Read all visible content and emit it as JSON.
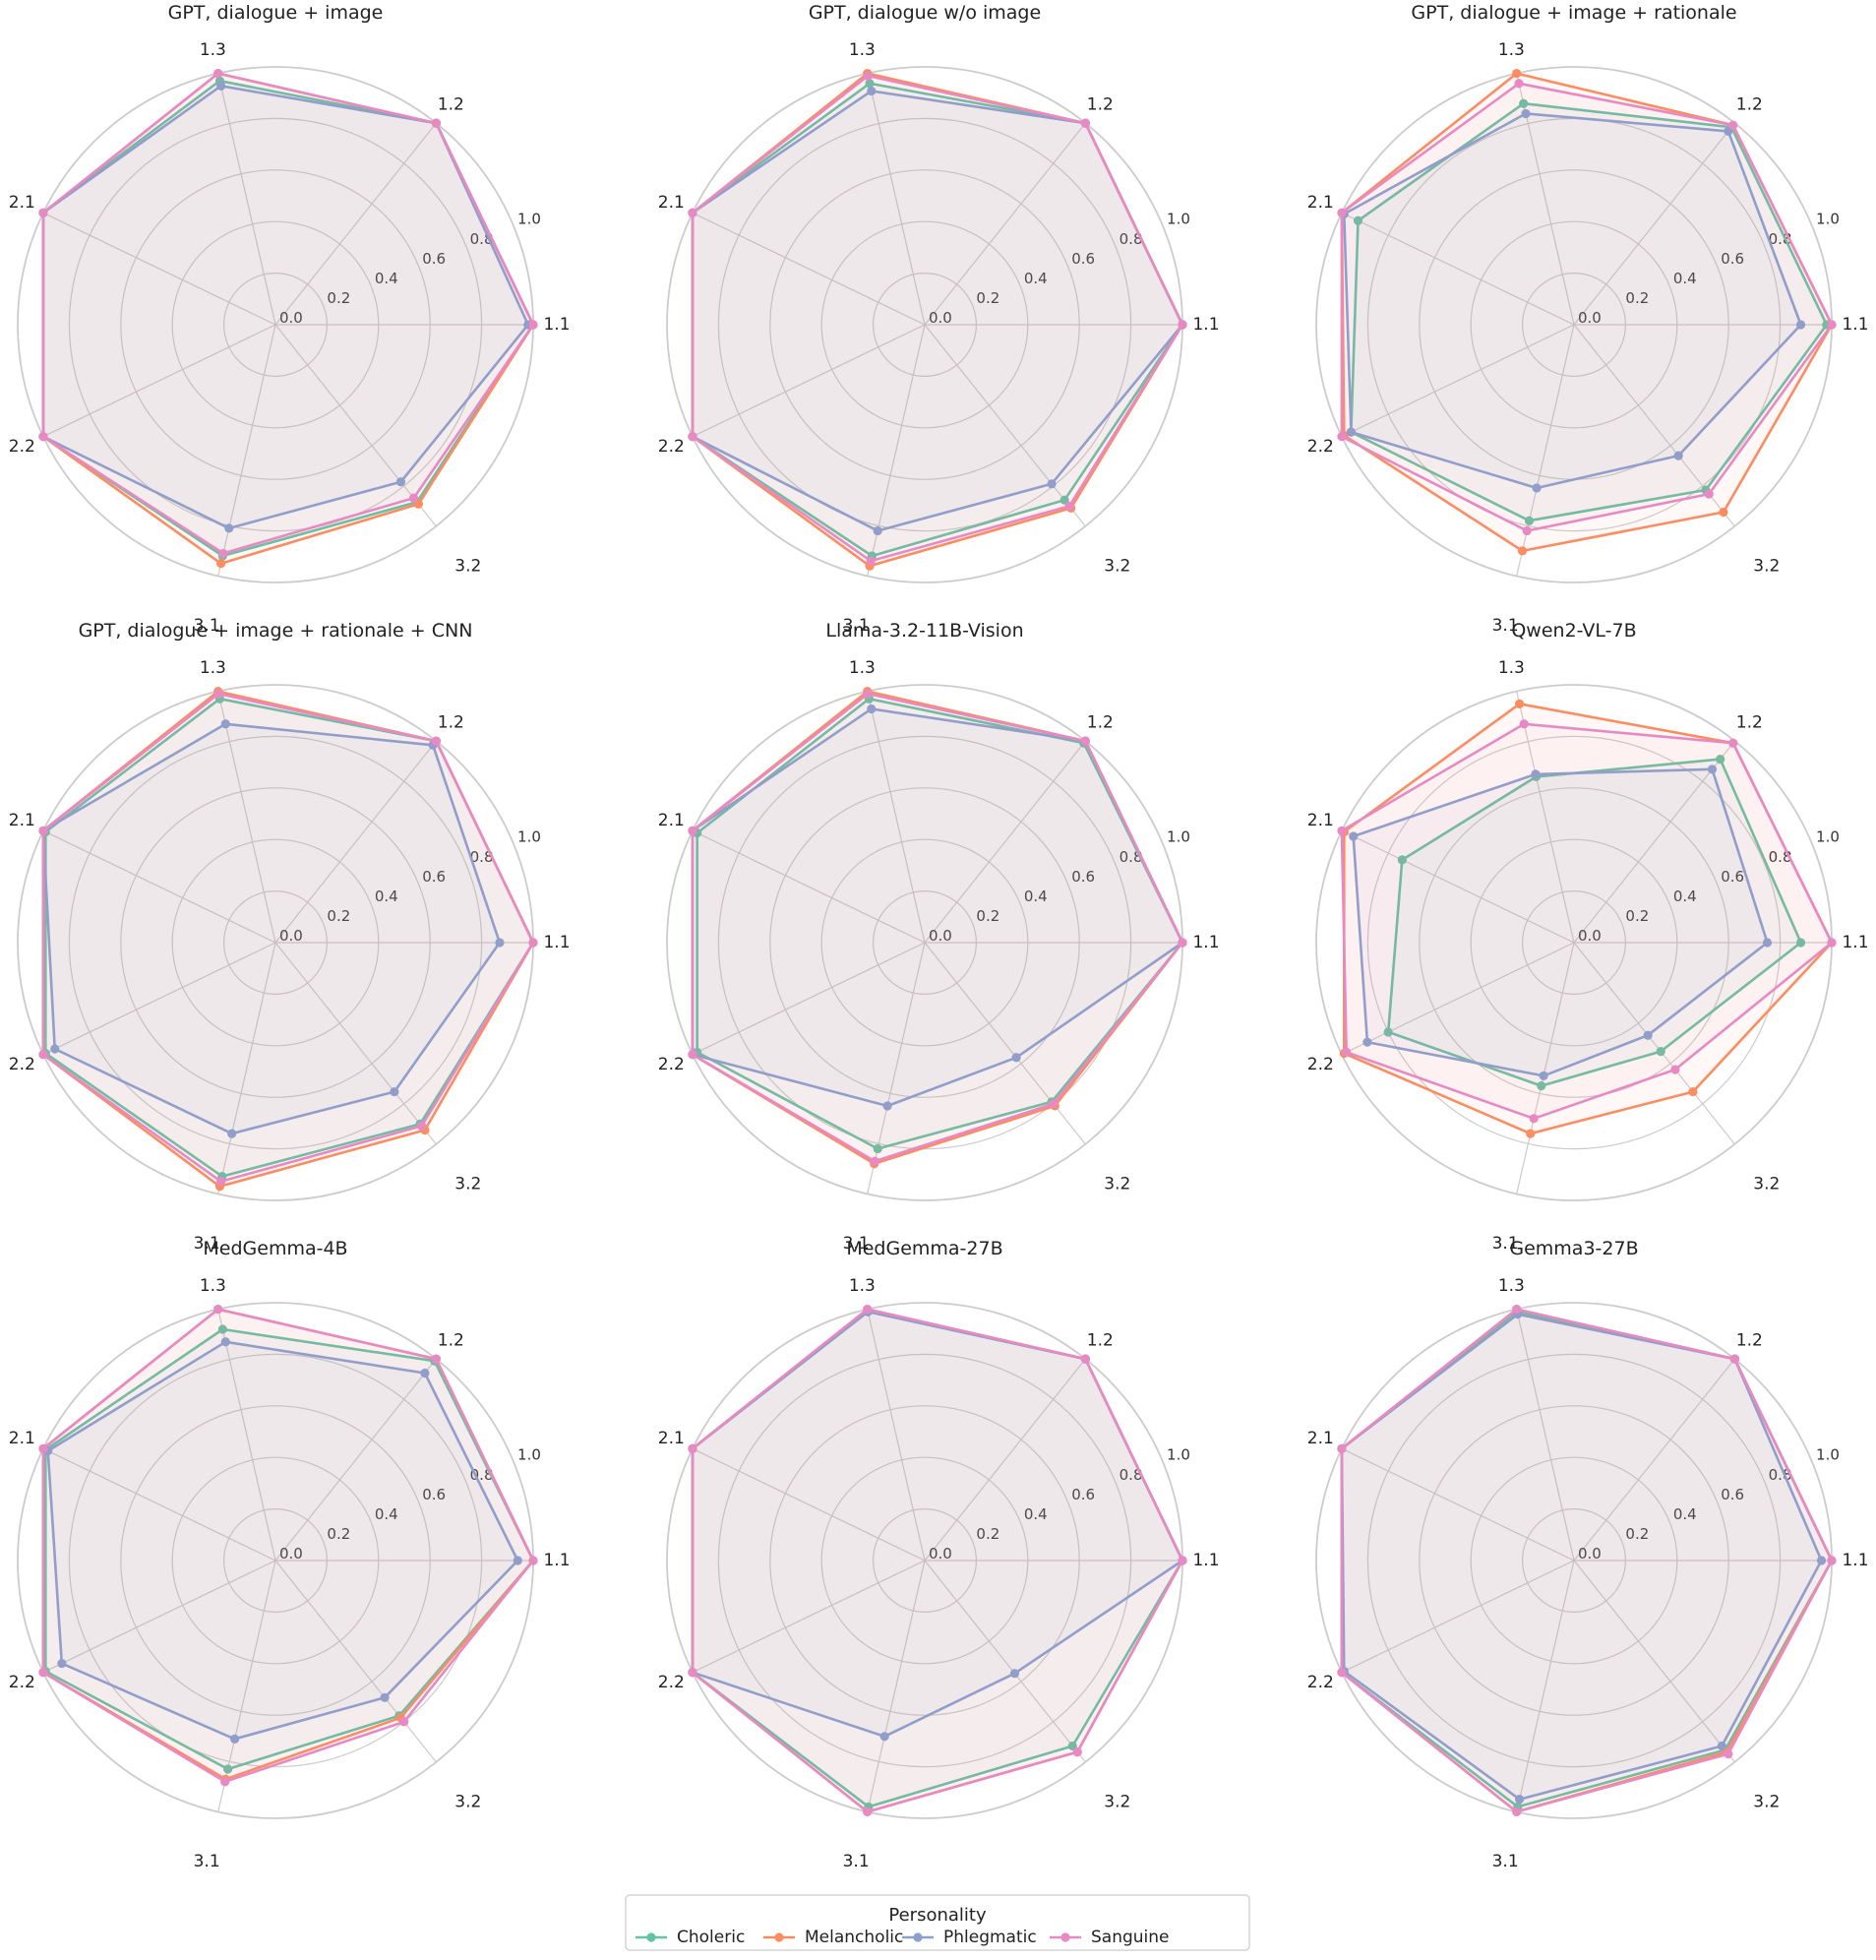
{
  "chart_data": [
    {
      "type": "radar",
      "title": "GPT, dialogue + image",
      "categories": [
        "1.1",
        "1.2",
        "1.3",
        "2.1",
        "2.2",
        "3.1",
        "3.2"
      ],
      "rlim": [
        0,
        1
      ],
      "radial_ticks": [
        "0.0",
        "0.2",
        "0.4",
        "0.6",
        "0.8",
        "1.0"
      ],
      "grid": true,
      "series": [
        {
          "name": "Choleric",
          "values": [
            1.0,
            1.0,
            0.97,
            1.0,
            1.0,
            0.92,
            0.88
          ]
        },
        {
          "name": "Melancholic",
          "values": [
            1.0,
            1.0,
            1.0,
            1.0,
            1.0,
            0.95,
            0.89
          ]
        },
        {
          "name": "Phlegmatic",
          "values": [
            0.98,
            1.0,
            0.95,
            1.0,
            1.0,
            0.81,
            0.78
          ]
        },
        {
          "name": "Sanguine",
          "values": [
            1.0,
            1.0,
            1.0,
            1.0,
            1.0,
            0.91,
            0.86
          ]
        }
      ]
    },
    {
      "type": "radar",
      "title": "GPT, dialogue w/o image",
      "categories": [
        "1.1",
        "1.2",
        "1.3",
        "2.1",
        "2.2",
        "3.1",
        "3.2"
      ],
      "rlim": [
        0,
        1
      ],
      "radial_ticks": [
        "0.0",
        "0.2",
        "0.4",
        "0.6",
        "0.8",
        "1.0"
      ],
      "grid": true,
      "series": [
        {
          "name": "Choleric",
          "values": [
            1.0,
            1.0,
            0.96,
            1.0,
            1.0,
            0.92,
            0.87
          ]
        },
        {
          "name": "Melancholic",
          "values": [
            1.0,
            1.0,
            1.0,
            1.0,
            1.0,
            0.96,
            0.91
          ]
        },
        {
          "name": "Phlegmatic",
          "values": [
            1.0,
            1.0,
            0.93,
            1.0,
            1.0,
            0.82,
            0.79
          ]
        },
        {
          "name": "Sanguine",
          "values": [
            1.0,
            1.0,
            0.99,
            1.0,
            1.0,
            0.94,
            0.9
          ]
        }
      ]
    },
    {
      "type": "radar",
      "title": "GPT, dialogue + image + rationale",
      "categories": [
        "1.1",
        "1.2",
        "1.3",
        "2.1",
        "2.2",
        "3.1",
        "3.2"
      ],
      "rlim": [
        0,
        1
      ],
      "radial_ticks": [
        "0.0",
        "0.2",
        "0.4",
        "0.6",
        "0.8",
        "1.0"
      ],
      "grid": true,
      "series": [
        {
          "name": "Choleric",
          "values": [
            0.98,
            0.98,
            0.88,
            0.93,
            0.96,
            0.78,
            0.82
          ]
        },
        {
          "name": "Melancholic",
          "values": [
            1.0,
            0.99,
            1.0,
            1.0,
            0.99,
            0.9,
            0.93
          ]
        },
        {
          "name": "Phlegmatic",
          "values": [
            0.88,
            0.96,
            0.84,
            0.99,
            0.96,
            0.65,
            0.65
          ]
        },
        {
          "name": "Sanguine",
          "values": [
            1.0,
            0.99,
            0.96,
            1.0,
            1.0,
            0.82,
            0.84
          ]
        }
      ]
    },
    {
      "type": "radar",
      "title": "GPT, dialogue + image + rationale + CNN",
      "categories": [
        "1.1",
        "1.2",
        "1.3",
        "2.1",
        "2.2",
        "3.1",
        "3.2"
      ],
      "rlim": [
        0,
        1
      ],
      "radial_ticks": [
        "0.0",
        "0.2",
        "0.4",
        "0.6",
        "0.8",
        "1.0"
      ],
      "grid": true,
      "series": [
        {
          "name": "Choleric",
          "values": [
            1.0,
            1.0,
            0.97,
            0.99,
            0.99,
            0.93,
            0.9
          ]
        },
        {
          "name": "Melancholic",
          "values": [
            1.0,
            1.0,
            1.0,
            1.0,
            1.0,
            0.97,
            0.93
          ]
        },
        {
          "name": "Phlegmatic",
          "values": [
            0.87,
            0.98,
            0.87,
            1.0,
            0.95,
            0.76,
            0.74
          ]
        },
        {
          "name": "Sanguine",
          "values": [
            1.0,
            1.0,
            0.99,
            1.0,
            1.0,
            0.95,
            0.91
          ]
        }
      ]
    },
    {
      "type": "radar",
      "title": "Llama-3.2-11B-Vision",
      "categories": [
        "1.1",
        "1.2",
        "1.3",
        "2.1",
        "2.2",
        "3.1",
        "3.2"
      ],
      "rlim": [
        0,
        1
      ],
      "radial_ticks": [
        "0.0",
        "0.2",
        "0.4",
        "0.6",
        "0.8",
        "1.0"
      ],
      "grid": true,
      "series": [
        {
          "name": "Choleric",
          "values": [
            1.0,
            0.99,
            0.97,
            0.98,
            0.98,
            0.82,
            0.79
          ]
        },
        {
          "name": "Melancholic",
          "values": [
            1.0,
            1.0,
            1.0,
            1.0,
            1.0,
            0.88,
            0.81
          ]
        },
        {
          "name": "Phlegmatic",
          "values": [
            1.0,
            1.0,
            0.93,
            1.0,
            1.0,
            0.65,
            0.57
          ]
        },
        {
          "name": "Sanguine",
          "values": [
            1.0,
            1.0,
            0.99,
            1.0,
            1.0,
            0.87,
            0.8
          ]
        }
      ]
    },
    {
      "type": "radar",
      "title": "Qwen2-VL-7B",
      "categories": [
        "1.1",
        "1.2",
        "1.3",
        "2.1",
        "2.2",
        "3.1",
        "3.2"
      ],
      "rlim": [
        0,
        1
      ],
      "radial_ticks": [
        "0.0",
        "0.2",
        "0.4",
        "0.6",
        "0.8",
        "1.0"
      ],
      "grid": true,
      "series": [
        {
          "name": "Choleric",
          "values": [
            0.88,
            0.91,
            0.66,
            0.74,
            0.8,
            0.57,
            0.54
          ]
        },
        {
          "name": "Melancholic",
          "values": [
            1.0,
            0.99,
            0.95,
            0.99,
            0.99,
            0.76,
            0.74
          ]
        },
        {
          "name": "Phlegmatic",
          "values": [
            0.75,
            0.86,
            0.67,
            0.95,
            0.89,
            0.53,
            0.46
          ]
        },
        {
          "name": "Sanguine",
          "values": [
            1.0,
            0.99,
            0.87,
            1.0,
            0.98,
            0.7,
            0.63
          ]
        }
      ]
    },
    {
      "type": "radar",
      "title": "MedGemma-4B",
      "categories": [
        "1.1",
        "1.2",
        "1.3",
        "2.1",
        "2.2",
        "3.1",
        "3.2"
      ],
      "rlim": [
        0,
        1
      ],
      "radial_ticks": [
        "0.0",
        "0.2",
        "0.4",
        "0.6",
        "0.8",
        "1.0"
      ],
      "grid": true,
      "series": [
        {
          "name": "Choleric",
          "values": [
            1.0,
            0.99,
            0.92,
            0.99,
            0.99,
            0.83,
            0.77
          ]
        },
        {
          "name": "Melancholic",
          "values": [
            1.0,
            1.0,
            1.0,
            1.0,
            1.0,
            0.87,
            0.78
          ]
        },
        {
          "name": "Phlegmatic",
          "values": [
            0.94,
            0.93,
            0.87,
            0.98,
            0.92,
            0.71,
            0.68
          ]
        },
        {
          "name": "Sanguine",
          "values": [
            1.0,
            1.0,
            1.0,
            1.0,
            1.0,
            0.88,
            0.8
          ]
        }
      ]
    },
    {
      "type": "radar",
      "title": "MedGemma-27B",
      "categories": [
        "1.1",
        "1.2",
        "1.3",
        "2.1",
        "2.2",
        "3.1",
        "3.2"
      ],
      "rlim": [
        0,
        1
      ],
      "radial_ticks": [
        "0.0",
        "0.2",
        "0.4",
        "0.6",
        "0.8",
        "1.0"
      ],
      "grid": true,
      "series": [
        {
          "name": "Choleric",
          "values": [
            1.0,
            1.0,
            0.99,
            1.0,
            1.0,
            0.98,
            0.92
          ]
        },
        {
          "name": "Melancholic",
          "values": [
            1.0,
            1.0,
            1.0,
            1.0,
            1.0,
            1.0,
            0.95
          ]
        },
        {
          "name": "Phlegmatic",
          "values": [
            1.0,
            1.0,
            0.99,
            1.0,
            1.0,
            0.7,
            0.56
          ]
        },
        {
          "name": "Sanguine",
          "values": [
            1.0,
            1.0,
            1.0,
            1.0,
            1.0,
            1.0,
            0.95
          ]
        }
      ]
    },
    {
      "type": "radar",
      "title": "Gemma3-27B",
      "categories": [
        "1.1",
        "1.2",
        "1.3",
        "2.1",
        "2.2",
        "3.1",
        "3.2"
      ],
      "rlim": [
        0,
        1
      ],
      "radial_ticks": [
        "0.0",
        "0.2",
        "0.4",
        "0.6",
        "0.8",
        "1.0"
      ],
      "grid": true,
      "series": [
        {
          "name": "Choleric",
          "values": [
            1.0,
            1.0,
            0.99,
            1.0,
            1.0,
            0.98,
            0.94
          ]
        },
        {
          "name": "Melancholic",
          "values": [
            1.0,
            1.0,
            1.0,
            1.0,
            1.0,
            1.0,
            0.95
          ]
        },
        {
          "name": "Phlegmatic",
          "values": [
            0.96,
            1.0,
            0.98,
            1.0,
            0.99,
            0.95,
            0.92
          ]
        },
        {
          "name": "Sanguine",
          "values": [
            1.0,
            1.0,
            1.0,
            1.0,
            1.0,
            1.0,
            0.96
          ]
        }
      ]
    }
  ],
  "legend": {
    "title": "Personality",
    "placement": "bottom-center",
    "items": [
      {
        "name": "Choleric",
        "color": "#66c2a5"
      },
      {
        "name": "Melancholic",
        "color": "#fc8d62"
      },
      {
        "name": "Phlegmatic",
        "color": "#8da0cb"
      },
      {
        "name": "Sanguine",
        "color": "#e78ac3"
      }
    ]
  }
}
